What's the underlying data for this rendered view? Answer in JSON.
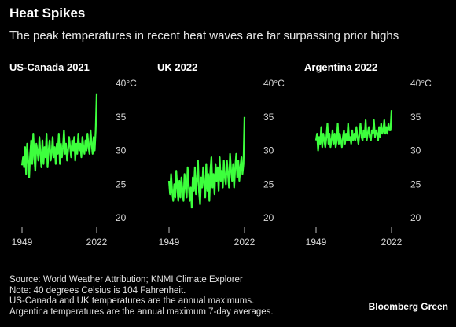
{
  "header": {
    "title": "Heat Spikes",
    "subtitle": "The peak temperatures in recent heat waves are far surpassing prior highs"
  },
  "footer": {
    "lines": [
      "Source: World Weather Attribution; KNMI Climate Explorer",
      "Note: 40 degrees Celsius is 104 Fahrenheit.",
      "US-Canada and UK temperatures are the annual maximums.",
      "Argentina temperatures are the annual maximum 7-day averages."
    ],
    "brand": "Bloomberg Green"
  },
  "colors": {
    "line": "#3dff3d",
    "background": "#000000",
    "text": "#ffffff"
  },
  "chart_data": [
    {
      "type": "line",
      "title": "US-Canada 2021",
      "ylim": [
        20,
        40
      ],
      "yticks": [
        "40°C",
        "35",
        "30",
        "25",
        "20"
      ],
      "xticks": [
        "1949",
        "2022"
      ],
      "x_start": 1949,
      "x_end": 2022,
      "series": [
        {
          "values": [
            27.8,
            29.0,
            27.5,
            30.5,
            26.5,
            31.0,
            28.5,
            26.0,
            29.5,
            31.5,
            28.0,
            32.5,
            29.0,
            27.0,
            31.0,
            30.0,
            28.5,
            32.0,
            29.5,
            27.5,
            31.5,
            28.0,
            30.5,
            29.0,
            32.5,
            27.5,
            30.0,
            31.5,
            28.5,
            29.5,
            32.0,
            29.0,
            30.5,
            28.0,
            31.0,
            29.5,
            32.5,
            28.0,
            31.0,
            29.0,
            30.5,
            33.0,
            29.5,
            31.0,
            28.5,
            30.0,
            32.0,
            30.5,
            29.0,
            31.5,
            30.0,
            32.0,
            28.5,
            31.0,
            29.5,
            32.5,
            30.0,
            31.0,
            29.0,
            32.0,
            30.5,
            29.5,
            31.5,
            30.0,
            32.5,
            30.5,
            29.5,
            33.0,
            31.0,
            29.5,
            32.0,
            30.0,
            33.0,
            38.5
          ]
        }
      ]
    },
    {
      "type": "line",
      "title": "UK 2022",
      "ylim": [
        20,
        40
      ],
      "yticks": [
        "40°C",
        "35",
        "30",
        "25",
        "20"
      ],
      "xticks": [
        "1949",
        "2022"
      ],
      "x_start": 1949,
      "x_end": 2022,
      "series": [
        {
          "values": [
            25.5,
            23.5,
            26.5,
            24.0,
            22.5,
            25.0,
            23.0,
            27.0,
            24.5,
            22.5,
            25.5,
            23.0,
            26.0,
            24.0,
            22.5,
            26.5,
            24.5,
            23.0,
            27.5,
            25.0,
            22.5,
            24.5,
            21.5,
            26.0,
            24.0,
            27.5,
            23.5,
            25.5,
            28.5,
            24.0,
            22.0,
            26.0,
            24.5,
            27.5,
            25.0,
            23.0,
            28.0,
            24.0,
            26.5,
            22.5,
            27.0,
            29.0,
            24.5,
            26.5,
            23.5,
            28.0,
            25.5,
            27.5,
            24.0,
            29.0,
            25.5,
            27.0,
            24.5,
            28.5,
            26.0,
            25.0,
            28.5,
            26.5,
            24.5,
            29.5,
            27.0,
            25.5,
            28.0,
            24.5,
            27.5,
            29.5,
            26.0,
            28.5,
            25.5,
            27.5,
            29.0,
            26.5,
            28.0,
            35.0
          ]
        }
      ]
    },
    {
      "type": "line",
      "title": "Argentina 2022",
      "ylim": [
        20,
        40
      ],
      "yticks": [
        "40°C",
        "35",
        "30",
        "25",
        "20"
      ],
      "xticks": [
        "1949",
        "2022"
      ],
      "x_start": 1949,
      "x_end": 2022,
      "series": [
        {
          "values": [
            31.5,
            32.5,
            30.0,
            32.0,
            31.0,
            33.5,
            30.5,
            32.5,
            31.5,
            30.5,
            32.0,
            34.0,
            31.0,
            32.5,
            30.5,
            31.5,
            33.0,
            31.0,
            32.5,
            30.5,
            31.5,
            34.0,
            31.0,
            32.5,
            31.5,
            30.5,
            32.0,
            33.0,
            31.0,
            32.5,
            31.5,
            34.0,
            31.5,
            32.0,
            31.0,
            33.0,
            31.5,
            32.5,
            31.5,
            33.5,
            32.0,
            31.0,
            32.5,
            34.0,
            32.0,
            31.5,
            33.0,
            32.0,
            34.5,
            31.5,
            32.5,
            33.5,
            32.0,
            31.5,
            33.0,
            32.5,
            34.5,
            32.0,
            33.0,
            32.5,
            31.5,
            33.5,
            32.0,
            34.0,
            32.5,
            33.0,
            34.5,
            32.5,
            33.5,
            32.5,
            34.0,
            33.0,
            33.0,
            36.0
          ]
        }
      ]
    }
  ]
}
